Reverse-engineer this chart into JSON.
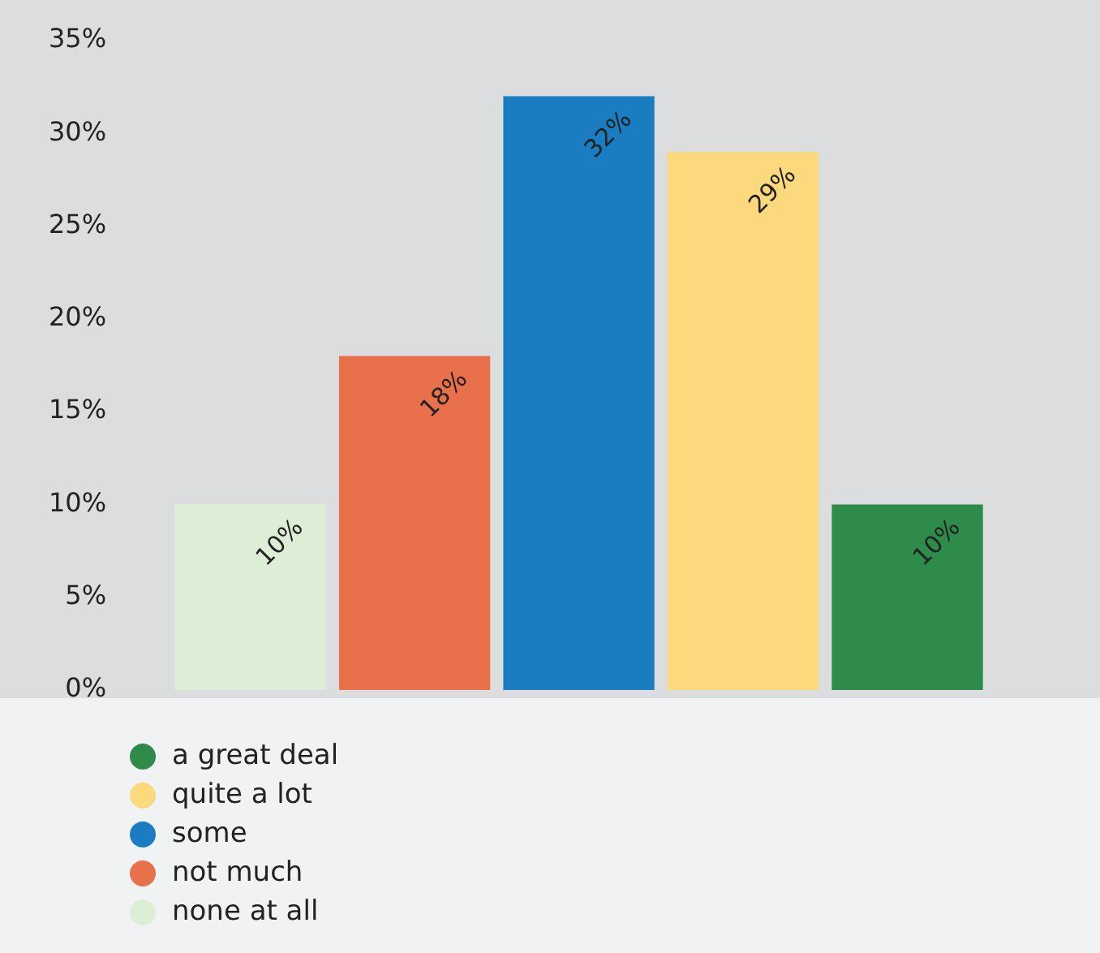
{
  "chart_data": {
    "type": "bar",
    "categories": [
      null
    ],
    "series": [
      {
        "name": "none at all",
        "color": "#dcefd6",
        "values": [
          10
        ],
        "value_labels": [
          "10%"
        ]
      },
      {
        "name": "not much",
        "color": "#e8714b",
        "values": [
          18
        ],
        "value_labels": [
          "18%"
        ]
      },
      {
        "name": "some",
        "color": "#1a7cc1",
        "values": [
          32
        ],
        "value_labels": [
          "32%"
        ]
      },
      {
        "name": "quite a lot",
        "color": "#fbd97c",
        "values": [
          29
        ],
        "value_labels": [
          "29%"
        ]
      },
      {
        "name": "a great deal",
        "color": "#2e8b4a",
        "values": [
          10
        ],
        "value_labels": [
          "10%"
        ]
      }
    ],
    "ylim": [
      0,
      35
    ],
    "yticks": [
      {
        "value": 0,
        "label": "0%"
      },
      {
        "value": 5,
        "label": "5%"
      },
      {
        "value": 10,
        "label": "10%"
      },
      {
        "value": 15,
        "label": "15%"
      },
      {
        "value": 20,
        "label": "20%"
      },
      {
        "value": 25,
        "label": "25%"
      },
      {
        "value": 30,
        "label": "30%"
      },
      {
        "value": 35,
        "label": "35%"
      }
    ],
    "grid": false,
    "legend": "bottom"
  }
}
